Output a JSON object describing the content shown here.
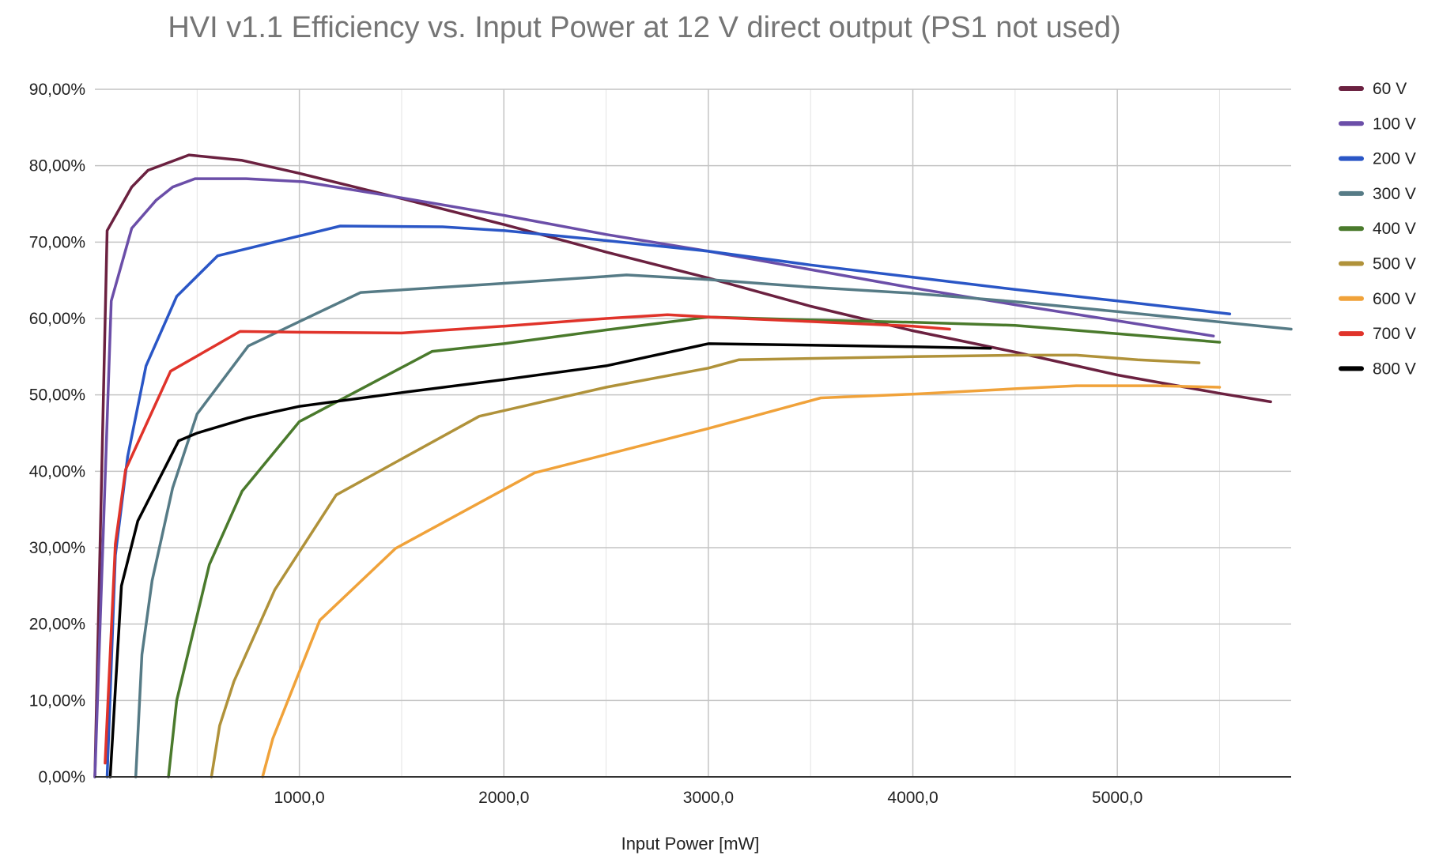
{
  "chart_data": {
    "type": "line",
    "title": "HVI v1.1 Efficiency vs. Input Power at 12 V direct output (PS1 not used)",
    "xlabel": "Input Power [mW]",
    "ylabel": "",
    "xlim": [
      0,
      5850
    ],
    "ylim": [
      0,
      90
    ],
    "x_ticks": [
      1000,
      2000,
      3000,
      4000,
      5000
    ],
    "x_tick_labels": [
      "1000,0",
      "2000,0",
      "3000,0",
      "4000,0",
      "5000,0"
    ],
    "y_ticks": [
      0,
      10,
      20,
      30,
      40,
      50,
      60,
      70,
      80,
      90
    ],
    "y_tick_labels": [
      "0,00%",
      "10,00%",
      "20,00%",
      "30,00%",
      "40,00%",
      "50,00%",
      "60,00%",
      "70,00%",
      "80,00%",
      "90,00%"
    ],
    "grid": true,
    "legend_position": "right",
    "series": [
      {
        "name": "60 V",
        "color": "#6b2140",
        "x": [
          0,
          60,
          180,
          260,
          460,
          720,
          1000,
          1500,
          2000,
          2500,
          3000,
          3500,
          4000,
          4500,
          5000,
          5500,
          5750
        ],
        "y": [
          0,
          71.5,
          77.2,
          79.4,
          81.4,
          80.7,
          79.0,
          75.7,
          72.3,
          68.7,
          65.3,
          61.6,
          58.4,
          55.6,
          52.6,
          50.2,
          49.1
        ]
      },
      {
        "name": "100 V",
        "color": "#6b4ea8",
        "x": [
          0,
          80,
          180,
          300,
          380,
          490,
          740,
          1020,
          1500,
          2000,
          2500,
          3000,
          3500,
          4000,
          4500,
          5000,
          5470
        ],
        "y": [
          0,
          62.3,
          71.8,
          75.5,
          77.2,
          78.3,
          78.3,
          77.9,
          75.8,
          73.5,
          71.0,
          68.8,
          66.4,
          64.0,
          61.8,
          59.7,
          57.7
        ]
      },
      {
        "name": "200 V",
        "color": "#2a56c6",
        "x": [
          60,
          100,
          160,
          250,
          400,
          600,
          1000,
          1200,
          1700,
          2000,
          2500,
          3000,
          3500,
          4000,
          4500,
          5000,
          5550
        ],
        "y": [
          0,
          29.0,
          41.9,
          53.8,
          62.9,
          68.2,
          70.8,
          72.1,
          72.0,
          71.5,
          70.2,
          68.8,
          67.0,
          65.4,
          63.8,
          62.3,
          60.6
        ]
      },
      {
        "name": "300 V",
        "color": "#567b86",
        "x": [
          200,
          230,
          280,
          380,
          500,
          750,
          1000,
          1300,
          2000,
          2500,
          2600,
          3000,
          3500,
          4000,
          4500,
          5000,
          5850
        ],
        "y": [
          0,
          16.0,
          25.7,
          37.8,
          47.5,
          56.4,
          59.6,
          63.4,
          64.6,
          65.5,
          65.7,
          65.1,
          64.1,
          63.3,
          62.2,
          60.9,
          58.6
        ]
      },
      {
        "name": "400 V",
        "color": "#4a7a2c",
        "x": [
          360,
          400,
          560,
          720,
          1000,
          1650,
          2000,
          2500,
          3000,
          3500,
          4000,
          4500,
          5000,
          5500
        ],
        "y": [
          0,
          10.0,
          27.8,
          37.4,
          46.5,
          55.7,
          56.7,
          58.5,
          60.2,
          59.8,
          59.5,
          59.1,
          58.0,
          56.9
        ]
      },
      {
        "name": "500 V",
        "color": "#b0923a",
        "x": [
          570,
          610,
          680,
          880,
          1180,
          1880,
          2500,
          3000,
          3150,
          4000,
          4500,
          4800,
          5100,
          5400
        ],
        "y": [
          0,
          6.7,
          12.5,
          24.5,
          36.9,
          47.2,
          51.0,
          53.5,
          54.6,
          55.0,
          55.2,
          55.2,
          54.6,
          54.2
        ]
      },
      {
        "name": "600 V",
        "color": "#f0a23a",
        "x": [
          820,
          870,
          1100,
          1470,
          2150,
          3000,
          3550,
          4000,
          4500,
          4800,
          5200,
          5500
        ],
        "y": [
          0,
          5.0,
          20.5,
          29.9,
          39.8,
          45.6,
          49.6,
          50.1,
          50.8,
          51.2,
          51.2,
          51.0
        ]
      },
      {
        "name": "700 V",
        "color": "#e0332a",
        "x": [
          50,
          100,
          150,
          370,
          710,
          1000,
          1500,
          2000,
          2500,
          2800,
          3000,
          3500,
          4000,
          4180
        ],
        "y": [
          1.8,
          30.5,
          40.2,
          53.1,
          58.3,
          58.2,
          58.1,
          59.0,
          60.0,
          60.5,
          60.2,
          59.6,
          59.0,
          58.6
        ]
      },
      {
        "name": "800 V",
        "color": "#000000",
        "x": [
          75,
          130,
          210,
          410,
          500,
          750,
          880,
          1000,
          1500,
          2000,
          2500,
          3000,
          3500,
          4000,
          4380
        ],
        "y": [
          0,
          25.0,
          33.5,
          44.0,
          45.0,
          47.0,
          47.8,
          48.5,
          50.3,
          52.0,
          53.8,
          56.7,
          56.5,
          56.3,
          56.1
        ]
      }
    ]
  }
}
